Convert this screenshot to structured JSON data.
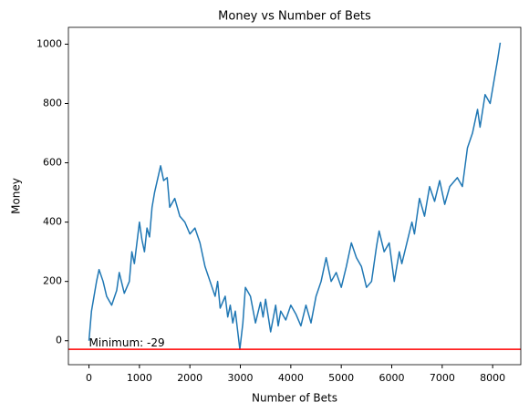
{
  "chart_data": {
    "type": "line",
    "title": "Money vs Number of Bets",
    "x_label": "Number of Bets",
    "y_label": "Money",
    "x": [
      0,
      50,
      100,
      150,
      200,
      280,
      350,
      450,
      550,
      600,
      700,
      800,
      850,
      900,
      1000,
      1050,
      1100,
      1150,
      1200,
      1250,
      1300,
      1380,
      1420,
      1480,
      1550,
      1600,
      1700,
      1800,
      1900,
      2000,
      2100,
      2200,
      2300,
      2400,
      2500,
      2550,
      2600,
      2700,
      2750,
      2800,
      2850,
      2900,
      2990,
      3050,
      3100,
      3200,
      3300,
      3400,
      3450,
      3500,
      3600,
      3700,
      3750,
      3800,
      3900,
      4000,
      4100,
      4200,
      4300,
      4400,
      4500,
      4600,
      4700,
      4800,
      4900,
      5000,
      5100,
      5200,
      5300,
      5400,
      5500,
      5600,
      5700,
      5750,
      5850,
      5950,
      6050,
      6150,
      6200,
      6300,
      6400,
      6450,
      6550,
      6650,
      6750,
      6850,
      6950,
      7050,
      7150,
      7300,
      7400,
      7500,
      7600,
      7700,
      7750,
      7850,
      7950,
      8050,
      8100,
      8150
    ],
    "series": [
      {
        "name": "Money",
        "color": "#1f77b4",
        "values": [
          0,
          100,
          150,
          200,
          240,
          200,
          150,
          120,
          170,
          230,
          160,
          200,
          300,
          260,
          400,
          340,
          300,
          380,
          350,
          450,
          500,
          560,
          590,
          540,
          550,
          450,
          480,
          420,
          400,
          360,
          380,
          330,
          250,
          200,
          150,
          200,
          110,
          150,
          80,
          120,
          60,
          100,
          -29,
          60,
          180,
          150,
          60,
          130,
          80,
          140,
          30,
          120,
          50,
          100,
          70,
          120,
          90,
          50,
          120,
          60,
          150,
          200,
          280,
          200,
          230,
          180,
          250,
          330,
          280,
          250,
          180,
          200,
          320,
          370,
          300,
          330,
          200,
          300,
          260,
          330,
          400,
          360,
          480,
          420,
          520,
          470,
          540,
          460,
          520,
          550,
          520,
          650,
          700,
          780,
          720,
          830,
          800,
          900,
          950,
          1005
        ]
      }
    ],
    "hline": {
      "value": -29,
      "color": "#ff0000"
    },
    "annotation": {
      "text": "Minimum: -29",
      "x": 0,
      "y": -29
    },
    "xlim": [
      -407.5,
      8557.5
    ],
    "ylim": [
      -80.7,
      1056.7
    ],
    "xticks": [
      0,
      1000,
      2000,
      3000,
      4000,
      5000,
      6000,
      7000,
      8000
    ],
    "yticks": [
      0,
      200,
      400,
      600,
      800,
      1000
    ]
  }
}
